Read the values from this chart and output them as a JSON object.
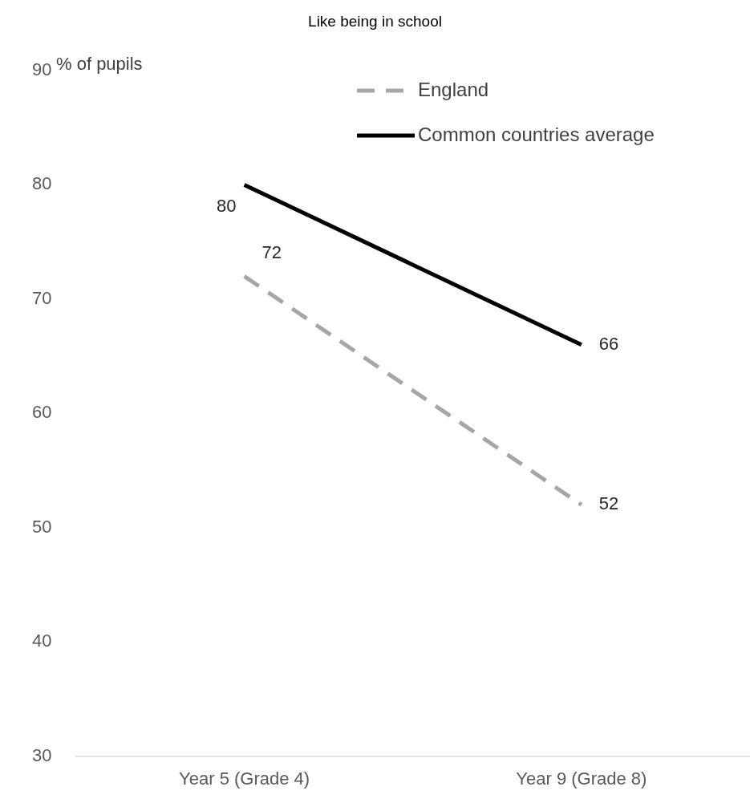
{
  "chart_data": {
    "type": "line",
    "title": "Like being in school",
    "ylabel": "% of pupils",
    "categories": [
      "Year 5 (Grade 4)",
      "Year 9 (Grade 8)"
    ],
    "series": [
      {
        "name": "England",
        "color": "#a6a6a6",
        "values": [
          72,
          52
        ],
        "line_style": "dashed"
      },
      {
        "name": "Common countries average",
        "color": "#000000",
        "values": [
          80,
          66
        ],
        "line_style": "solid"
      }
    ],
    "ylim": [
      30,
      90
    ],
    "yticks": [
      30,
      40,
      50,
      60,
      70,
      80,
      90
    ],
    "grid": false,
    "legend": "top right",
    "marker": "none",
    "data_labels": true
  }
}
